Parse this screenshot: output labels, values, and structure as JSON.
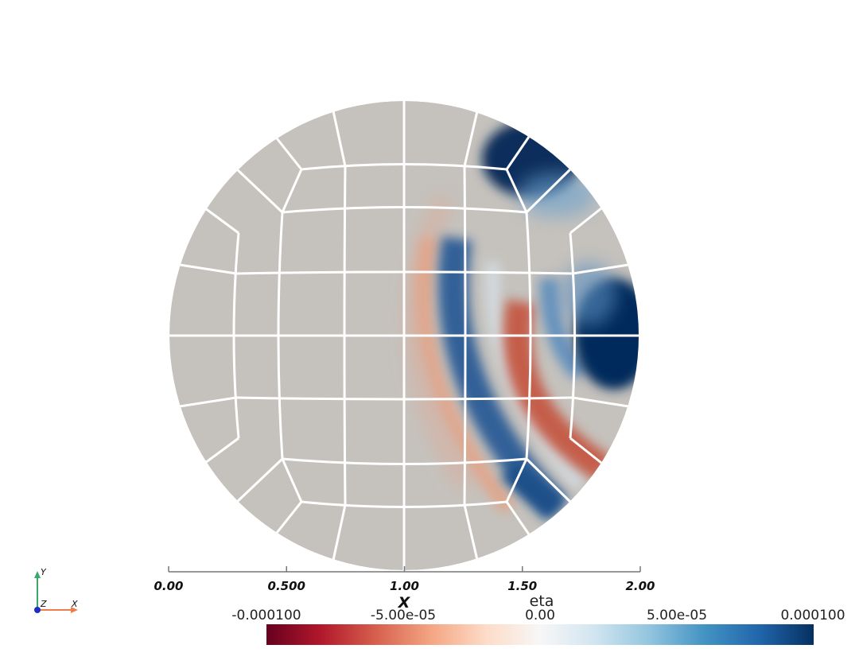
{
  "view": {
    "x_axis": {
      "title": "X",
      "ticks": [
        {
          "value": 0.0,
          "label": "0.00"
        },
        {
          "value": 0.5,
          "label": "0.500"
        },
        {
          "value": 1.0,
          "label": "1.00"
        },
        {
          "value": 1.5,
          "label": "1.50"
        },
        {
          "value": 2.0,
          "label": "2.00"
        }
      ],
      "range": [
        0,
        2
      ]
    },
    "field": {
      "name": "eta",
      "domain": "disk",
      "center": [
        1.0,
        0.0
      ],
      "radius": 1.0
    },
    "colorbar": {
      "title": "eta",
      "range": [
        -0.0001,
        0.0001
      ],
      "colormap": "Cool to Warm (diverging, inverted)",
      "stops": [
        "#67001f",
        "#b2182b",
        "#d6604d",
        "#f4a582",
        "#fddbc7",
        "#f7f7f7",
        "#d1e5f0",
        "#92c5de",
        "#4393c3",
        "#2166ac",
        "#053061"
      ],
      "labels": [
        {
          "value": -0.0001,
          "label": "-0.000100"
        },
        {
          "value": -5e-05,
          "label": "-5.00e-05"
        },
        {
          "value": 0.0,
          "label": "0.00"
        },
        {
          "value": 5e-05,
          "label": "5.00e-05"
        },
        {
          "value": 0.0001,
          "label": "0.000100"
        }
      ]
    },
    "orientation_triad": {
      "y_label": "Y",
      "x_label": "X",
      "z_label": "Z",
      "y_color": "#3aa76d",
      "x_color": "#f07c4a",
      "z_color": "#1c2ccf"
    },
    "colors": {
      "mesh_fill": "#c5c2bd",
      "mesh_lines": "#ffffff",
      "positive": "#053061",
      "negative": "#b2182b"
    }
  }
}
